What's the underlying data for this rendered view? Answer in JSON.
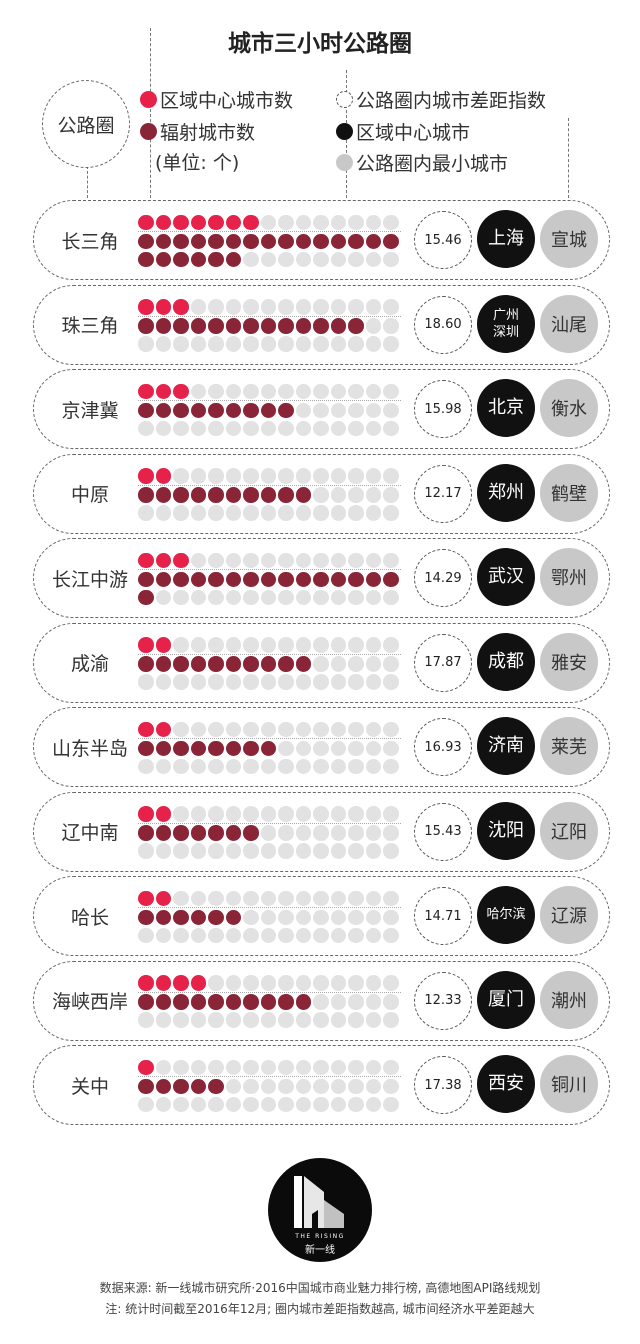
{
  "title": "城市三小时公路圈",
  "circle_label": "公路圈",
  "legend": {
    "center_count": "区域中心城市数",
    "radiating_count": "辐射城市数",
    "unit": "(单位: 个)",
    "gap_index": "公路圈内城市差距指数",
    "center_city": "区域中心城市",
    "min_city": "公路圈内最小城市"
  },
  "colors": {
    "center": "#e6224a",
    "radiating": "#8a2538",
    "empty": "#e2e2e2",
    "dark": "#111111",
    "light": "#c8c8c8"
  },
  "chart_data": {
    "type": "table",
    "title": "城市三小时公路圈",
    "dots_per_line": 15,
    "rows": [
      {
        "region": "长三角",
        "center_count": 7,
        "radiating_count": 21,
        "gap_index": "15.46",
        "center_city": [
          "上海"
        ],
        "min_city": "宣城"
      },
      {
        "region": "珠三角",
        "center_count": 3,
        "radiating_count": 13,
        "gap_index": "18.60",
        "center_city": [
          "广州",
          "深圳"
        ],
        "min_city": "汕尾"
      },
      {
        "region": "京津冀",
        "center_count": 3,
        "radiating_count": 9,
        "gap_index": "15.98",
        "center_city": [
          "北京"
        ],
        "min_city": "衡水"
      },
      {
        "region": "中原",
        "center_count": 2,
        "radiating_count": 10,
        "gap_index": "12.17",
        "center_city": [
          "郑州"
        ],
        "min_city": "鹤壁"
      },
      {
        "region": "长江中游",
        "center_count": 3,
        "radiating_count": 16,
        "gap_index": "14.29",
        "center_city": [
          "武汉"
        ],
        "min_city": "鄂州"
      },
      {
        "region": "成渝",
        "center_count": 2,
        "radiating_count": 10,
        "gap_index": "17.87",
        "center_city": [
          "成都"
        ],
        "min_city": "雅安"
      },
      {
        "region": "山东半岛",
        "center_count": 2,
        "radiating_count": 8,
        "gap_index": "16.93",
        "center_city": [
          "济南"
        ],
        "min_city": "莱芜"
      },
      {
        "region": "辽中南",
        "center_count": 2,
        "radiating_count": 7,
        "gap_index": "15.43",
        "center_city": [
          "沈阳"
        ],
        "min_city": "辽阳"
      },
      {
        "region": "哈长",
        "center_count": 2,
        "radiating_count": 6,
        "gap_index": "14.71",
        "center_city": [
          "哈尔滨"
        ],
        "min_city": "辽源"
      },
      {
        "region": "海峡西岸",
        "center_count": 4,
        "radiating_count": 10,
        "gap_index": "12.33",
        "center_city": [
          "厦门"
        ],
        "min_city": "潮州"
      },
      {
        "region": "关中",
        "center_count": 1,
        "radiating_count": 5,
        "gap_index": "17.38",
        "center_city": [
          "西安"
        ],
        "min_city": "铜川"
      }
    ]
  },
  "logo": {
    "text": "THE RISING",
    "subtext": "新一线"
  },
  "footer": {
    "source": "数据来源: 新一线城市研究所·2016中国城市商业魅力排行榜, 高德地图API路线规划",
    "note": "注: 统计时间截至2016年12月; 圈内城市差距指数越高, 城市间经济水平差距越大"
  }
}
